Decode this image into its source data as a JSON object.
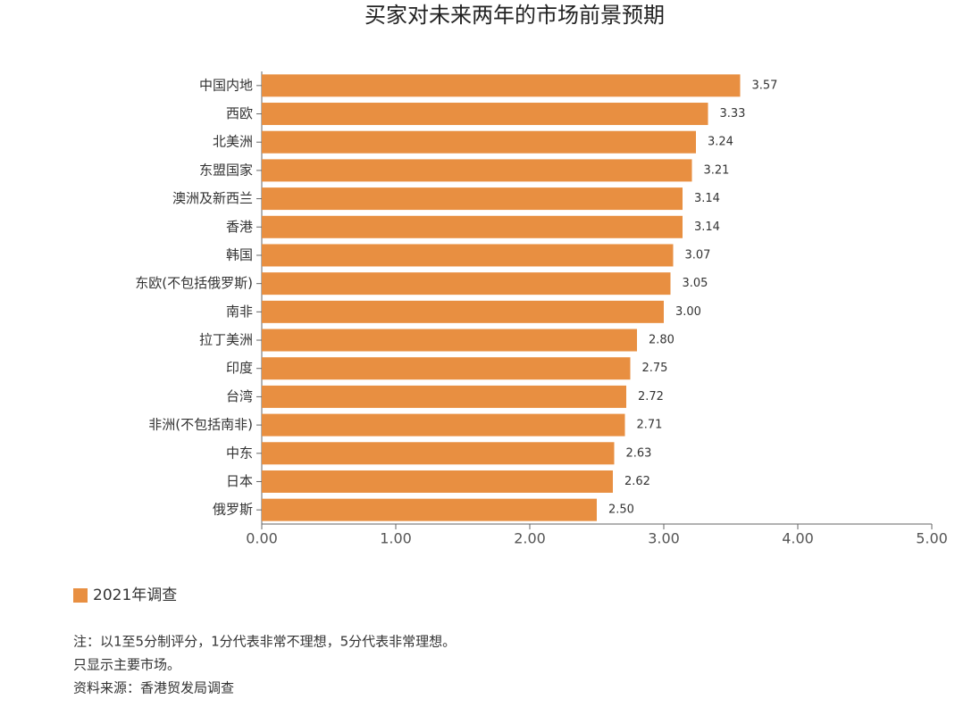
{
  "chart_data": {
    "type": "bar",
    "orientation": "horizontal",
    "title": "买家对未来两年的市场前景预期",
    "categories": [
      "中国内地",
      "西欧",
      "北美洲",
      "东盟国家",
      "澳洲及新西兰",
      "香港",
      "韩国",
      "东欧(不包括俄罗斯)",
      "南非",
      "拉丁美洲",
      "印度",
      "台湾",
      "非洲(不包括南非)",
      "中东",
      "日本",
      "俄罗斯"
    ],
    "series": [
      {
        "name": "2021年调查",
        "color": "#e88f41",
        "values": [
          3.57,
          3.33,
          3.24,
          3.21,
          3.14,
          3.14,
          3.07,
          3.05,
          3.0,
          2.8,
          2.75,
          2.72,
          2.71,
          2.63,
          2.62,
          2.5
        ],
        "value_labels": [
          "3.57",
          "3.33",
          "3.24",
          "3.21",
          "3.14",
          "3.14",
          "3.07",
          "3.05",
          "3.00",
          "2.80",
          "2.75",
          "2.72",
          "2.71",
          "2.63",
          "2.62",
          "2.50"
        ]
      }
    ],
    "xlim": [
      0,
      5
    ],
    "xticks": [
      {
        "value": 0,
        "label": "0.00"
      },
      {
        "value": 1,
        "label": "1.00"
      },
      {
        "value": 2,
        "label": "2.00"
      },
      {
        "value": 3,
        "label": "3.00"
      },
      {
        "value": 4,
        "label": "4.00"
      },
      {
        "value": 5,
        "label": "5.00"
      }
    ],
    "grid": false,
    "legend": "bottom-left",
    "notes": [
      "注：以1至5分制评分，1分代表非常不理想，5分代表非常理想。",
      "只显示主要市场。",
      "资料来源：香港贸发局调查"
    ]
  }
}
